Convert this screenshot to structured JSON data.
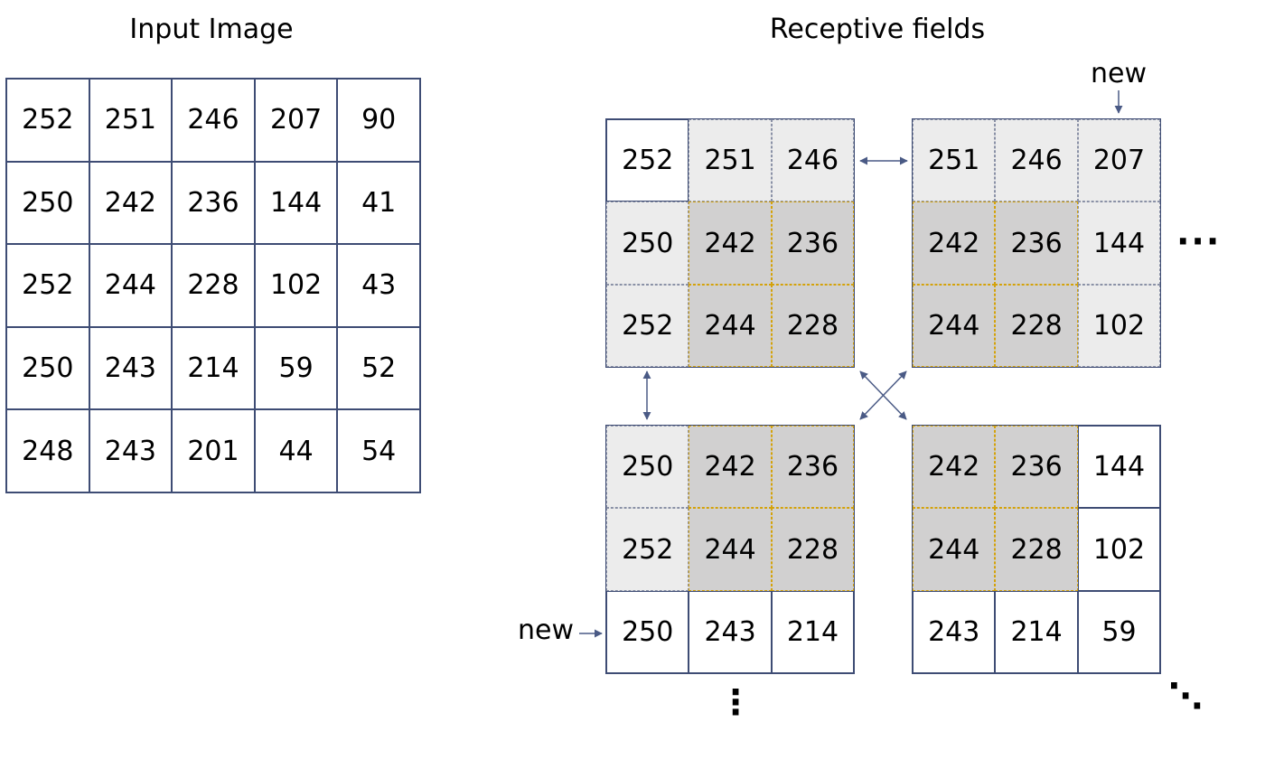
{
  "titles": {
    "input": "Input Image",
    "receptive": "Receptive fields"
  },
  "input_image": [
    [
      "252",
      "251",
      "246",
      "207",
      "90"
    ],
    [
      "250",
      "242",
      "236",
      "144",
      "41"
    ],
    [
      "252",
      "244",
      "228",
      "102",
      "43"
    ],
    [
      "250",
      "243",
      "214",
      "59",
      "52"
    ],
    [
      "248",
      "243",
      "201",
      "44",
      "54"
    ]
  ],
  "fields": {
    "top_left": {
      "values": [
        "252",
        "251",
        "246",
        "250",
        "242",
        "236",
        "252",
        "244",
        "228"
      ],
      "shade": [
        "none",
        "light",
        "light",
        "light",
        "dark",
        "dark",
        "light",
        "dark",
        "dark"
      ]
    },
    "top_right": {
      "values": [
        "251",
        "246",
        "207",
        "242",
        "236",
        "144",
        "244",
        "228",
        "102"
      ],
      "shade": [
        "light",
        "light",
        "light",
        "dark",
        "dark",
        "light",
        "dark",
        "dark",
        "light"
      ]
    },
    "bottom_left": {
      "values": [
        "250",
        "242",
        "236",
        "252",
        "244",
        "228",
        "250",
        "243",
        "214"
      ],
      "shade": [
        "light",
        "dark",
        "dark",
        "light",
        "dark",
        "dark",
        "none",
        "none",
        "none"
      ]
    },
    "bottom_right": {
      "values": [
        "242",
        "236",
        "144",
        "244",
        "228",
        "102",
        "243",
        "214",
        "59"
      ],
      "shade": [
        "dark",
        "dark",
        "none",
        "dark",
        "dark",
        "none",
        "none",
        "none",
        "none"
      ]
    }
  },
  "labels": {
    "new_top": "new",
    "new_bottom": "new"
  },
  "ellipses": {
    "right": "···",
    "down": "⋮",
    "diag": "⋱"
  },
  "colors": {
    "border": "#3e4c74",
    "light_fill": "#ececec",
    "dark_fill": "#d1d0d0",
    "overlap_dash": "#d4a20a",
    "arrow": "#4a5a85"
  }
}
